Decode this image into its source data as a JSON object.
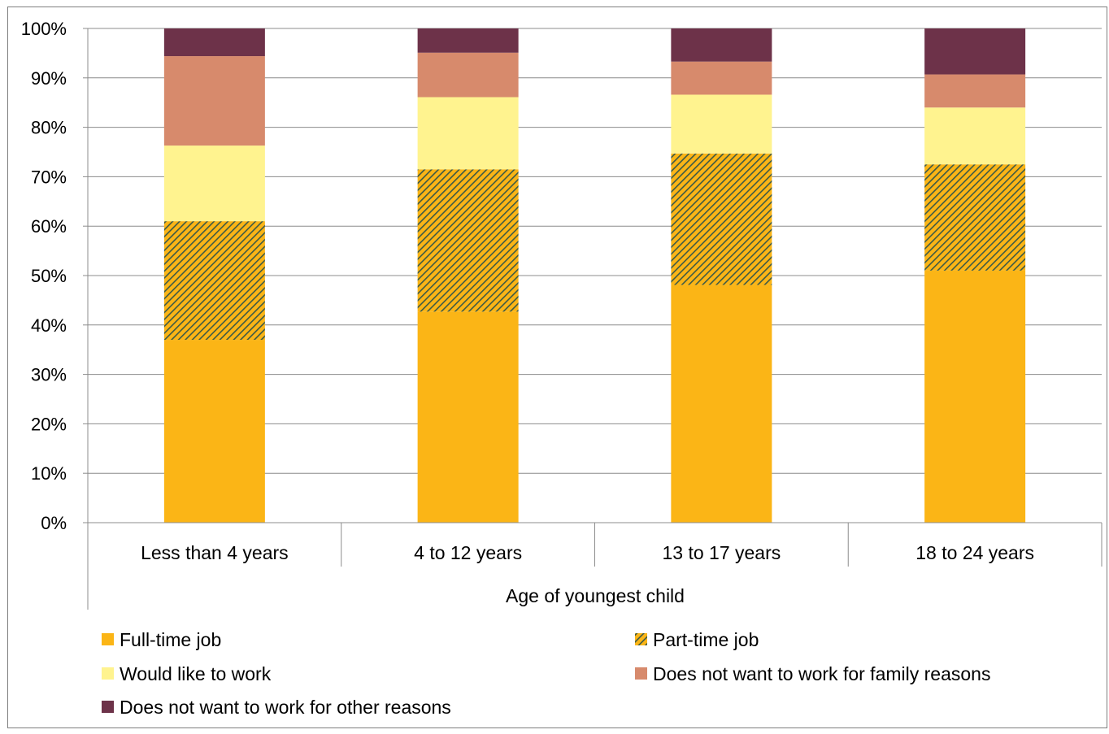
{
  "chart_data": {
    "type": "bar",
    "stacked": true,
    "normalized": true,
    "title": "",
    "xlabel": "Age of youngest child",
    "ylabel": "",
    "ylim": [
      0,
      100
    ],
    "y_ticks": [
      "0%",
      "10%",
      "20%",
      "30%",
      "40%",
      "50%",
      "60%",
      "70%",
      "80%",
      "90%",
      "100%"
    ],
    "grid": true,
    "legend_position": "bottom",
    "categories": [
      "Less than 4 years",
      "4 to 12 years",
      "13 to 17 years",
      "18 to 24 years"
    ],
    "series": [
      {
        "name": "Full-time job",
        "values": [
          37,
          42.7,
          48.1,
          51
        ],
        "color": "#FBB516",
        "pattern": "solid"
      },
      {
        "name": "Part-time job",
        "values": [
          24,
          28.8,
          26.6,
          21.5
        ],
        "color": "#FBB516",
        "pattern": "diagonal-hatch",
        "hatch_color": "#3D5A46"
      },
      {
        "name": "Would like to work",
        "values": [
          15.3,
          14.6,
          11.9,
          11.5
        ],
        "color": "#FFF38F",
        "pattern": "solid"
      },
      {
        "name": "Does not want to work for family reasons",
        "values": [
          18.1,
          9,
          6.7,
          6.7
        ],
        "color": "#D78A6C",
        "pattern": "solid"
      },
      {
        "name": "Does not want to work for other reasons",
        "values": [
          5.6,
          4.9,
          6.7,
          9.3
        ],
        "color": "#6D3249",
        "pattern": "solid"
      }
    ]
  }
}
